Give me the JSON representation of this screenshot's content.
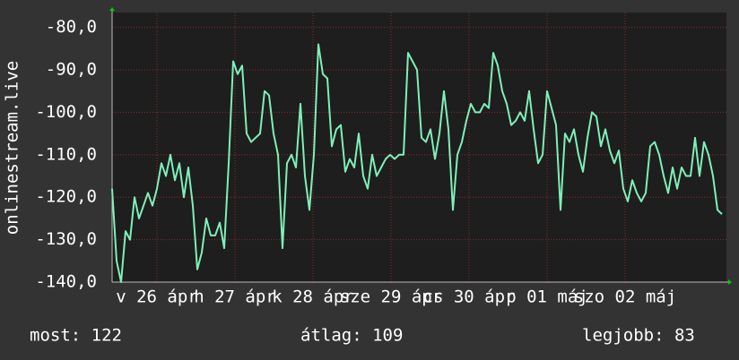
{
  "chart_data": {
    "type": "line",
    "y_label": "onlinestream.live",
    "ylim": [
      -140,
      -76.5
    ],
    "yticks": [
      {
        "value": -80,
        "label": "-80,0"
      },
      {
        "value": -90,
        "label": "-90,0"
      },
      {
        "value": -100,
        "label": "-100,0"
      },
      {
        "value": -110,
        "label": "-110,0"
      },
      {
        "value": -120,
        "label": "-120,0"
      },
      {
        "value": -130,
        "label": "-130,0"
      },
      {
        "value": -140,
        "label": "-140,0"
      }
    ],
    "xlim": [
      0,
      137
    ],
    "xticks": [
      {
        "value": 10,
        "label": "v 26 ápr"
      },
      {
        "value": 27.4,
        "label": "h 27 ápr"
      },
      {
        "value": 44.8,
        "label": "k 28 ápr"
      },
      {
        "value": 62.2,
        "label": "sze 29 ápr"
      },
      {
        "value": 79.6,
        "label": "cs 30 ápr"
      },
      {
        "value": 97,
        "label": "p 01 máj"
      },
      {
        "value": 114.4,
        "label": "szo 02 máj"
      }
    ],
    "grid": true,
    "series": [
      {
        "color": "#7ff0b8",
        "values": [
          -118,
          -135,
          -140,
          -128,
          -130,
          -120,
          -125,
          -122,
          -119,
          -122,
          -118,
          -112,
          -115,
          -110,
          -116,
          -112,
          -120,
          -113,
          -122,
          -137,
          -133,
          -125,
          -129,
          -129,
          -126,
          -132,
          -112,
          -88,
          -91,
          -89,
          -105,
          -107,
          -106,
          -105,
          -95,
          -96,
          -105,
          -110,
          -132,
          -112,
          -110,
          -113,
          -98,
          -115,
          -123,
          -110,
          -84,
          -91,
          -92,
          -108,
          -104,
          -103,
          -114,
          -111,
          -113,
          -105,
          -115,
          -118,
          -110,
          -115,
          -113,
          -111,
          -110,
          -111,
          -110,
          -110,
          -86,
          -88,
          -90,
          -106,
          -107,
          -104,
          -111,
          -105,
          -95,
          -104,
          -123,
          -110,
          -107,
          -102,
          -98,
          -100,
          -100,
          -98,
          -99,
          -86,
          -89,
          -95,
          -98,
          -103,
          -102,
          -100,
          -102,
          -95,
          -104,
          -112,
          -110,
          -95,
          -99,
          -103,
          -123,
          -105,
          -107,
          -104,
          -110,
          -114,
          -106,
          -100,
          -101,
          -108,
          -104,
          -109,
          -112,
          -109,
          -118,
          -121,
          -116,
          -119,
          -121,
          -119,
          -108,
          -107,
          -110,
          -115,
          -119,
          -113,
          -118,
          -113,
          -115,
          -115,
          -106,
          -115,
          -107,
          -110,
          -115,
          -123,
          -124
        ]
      }
    ],
    "footer": [
      "most: 122",
      "átlag: 109",
      "legjobb: 83"
    ]
  }
}
